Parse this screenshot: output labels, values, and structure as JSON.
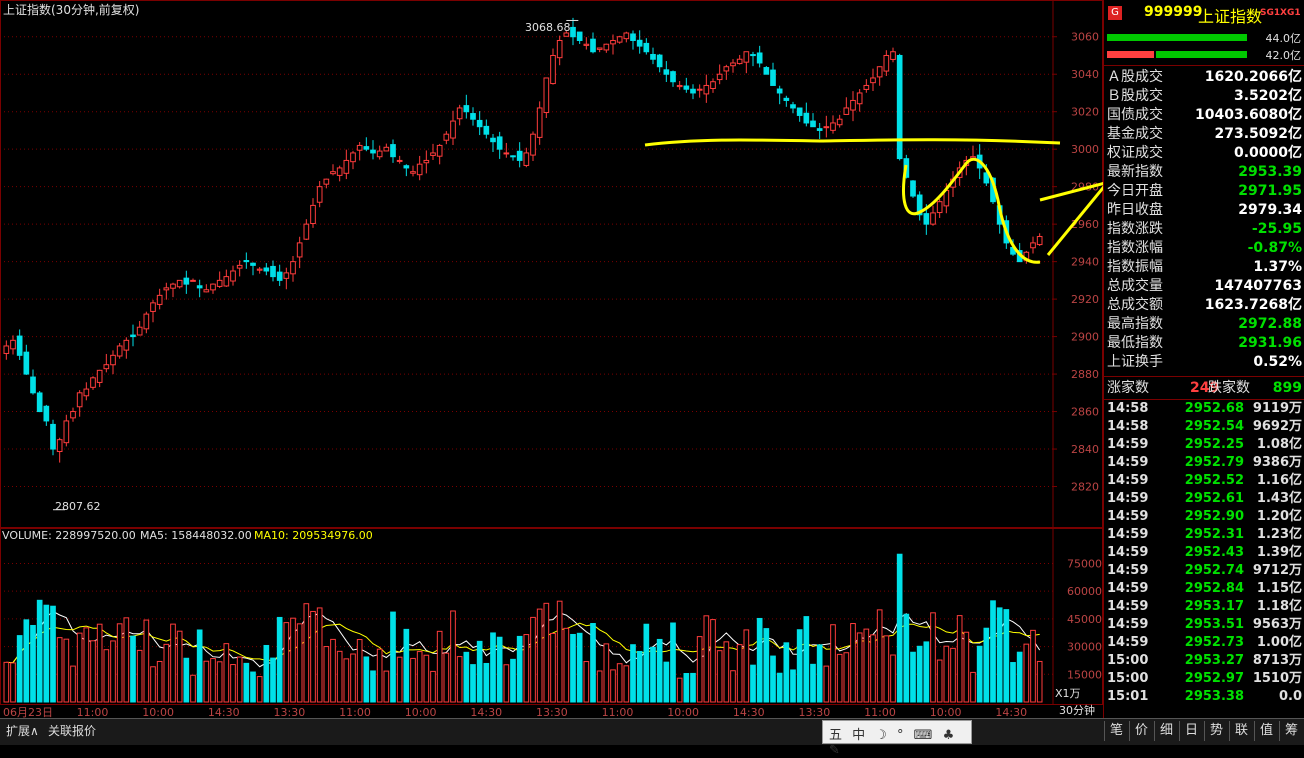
{
  "header": {
    "title": "上证指数(30分钟,前复权)"
  },
  "price_annotations": {
    "high": "3068.68",
    "low": "2807.62"
  },
  "volume_header": {
    "volume": "VOLUME: 228997520.00",
    "ma5": "MA5: 158448032.00",
    "ma10": "MA10: 209534976.00"
  },
  "volume_unit": "X1万",
  "colors": {
    "up": "#ff3c3c",
    "down": "#00e0e8",
    "ma5": "#ffffff",
    "ma10": "#ffff00",
    "annotation": "#ffff00",
    "grid": "#7a0000"
  },
  "panel": {
    "code": "999999",
    "name": "上证指数",
    "tags": [
      "SG1",
      "XG1"
    ],
    "bars": [
      {
        "label": "44.0亿",
        "green_pct": 100
      },
      {
        "label": "42.0亿",
        "green_pct": 45
      }
    ],
    "stats": [
      {
        "label": "Ａ股成交",
        "value": "1620.2066亿"
      },
      {
        "label": "Ｂ股成交",
        "value": "3.5202亿"
      },
      {
        "label": "国债成交",
        "value": "10403.6080亿"
      },
      {
        "label": "基金成交",
        "value": "273.5092亿"
      },
      {
        "label": "权证成交",
        "value": "0.0000亿"
      },
      {
        "label": "最新指数",
        "value": "2953.39"
      },
      {
        "label": "今日开盘",
        "value": "2971.95"
      },
      {
        "label": "昨日收盘",
        "value": "2979.34"
      },
      {
        "label": "指数涨跌",
        "value": "-25.95"
      },
      {
        "label": "指数涨幅",
        "value": "-0.87%"
      },
      {
        "label": "指数振幅",
        "value": "1.37%"
      },
      {
        "label": "总成交量",
        "value": "147407763"
      },
      {
        "label": "总成交额",
        "value": "1623.7268亿"
      },
      {
        "label": "最高指数",
        "value": "2972.88"
      },
      {
        "label": "最低指数",
        "value": "2931.96"
      },
      {
        "label": "上证换手",
        "value": "0.52%"
      }
    ],
    "advance": {
      "up_label": "涨家数",
      "up": "249",
      "down_label": "跌家数",
      "down": "899"
    },
    "ticks": [
      {
        "time": "14:58",
        "price": "2952.68",
        "vol": "9119万"
      },
      {
        "time": "14:58",
        "price": "2952.54",
        "vol": "9692万"
      },
      {
        "time": "14:59",
        "price": "2952.25",
        "vol": "1.08亿"
      },
      {
        "time": "14:59",
        "price": "2952.79",
        "vol": "9386万"
      },
      {
        "time": "14:59",
        "price": "2952.52",
        "vol": "1.16亿"
      },
      {
        "time": "14:59",
        "price": "2952.61",
        "vol": "1.43亿"
      },
      {
        "time": "14:59",
        "price": "2952.90",
        "vol": "1.20亿"
      },
      {
        "time": "14:59",
        "price": "2952.31",
        "vol": "1.23亿"
      },
      {
        "time": "14:59",
        "price": "2952.43",
        "vol": "1.39亿"
      },
      {
        "time": "14:59",
        "price": "2952.74",
        "vol": "9712万"
      },
      {
        "time": "14:59",
        "price": "2952.84",
        "vol": "1.15亿"
      },
      {
        "time": "14:59",
        "price": "2953.17",
        "vol": "1.18亿"
      },
      {
        "time": "14:59",
        "price": "2953.51",
        "vol": "9563万"
      },
      {
        "time": "14:59",
        "price": "2952.73",
        "vol": "1.00亿"
      },
      {
        "time": "15:00",
        "price": "2953.27",
        "vol": "8713万"
      },
      {
        "time": "15:00",
        "price": "2952.97",
        "vol": "1510万"
      },
      {
        "time": "15:01",
        "price": "2953.38",
        "vol": "0.0"
      }
    ]
  },
  "bottom": {
    "tabs": [
      "扩展∧",
      "关联报价"
    ],
    "period": "30分钟",
    "right_tabs": [
      "笔",
      "价",
      "细",
      "日",
      "势",
      "联",
      "值",
      "筹"
    ],
    "ime": "五 中 ☽ ° ⌨ ♣ ✎"
  },
  "chart_data": {
    "type": "candlestick",
    "title": "上证指数(30分钟,前复权)",
    "price_ylim": [
      2800,
      3070
    ],
    "price_ticks": [
      2820,
      2840,
      2860,
      2880,
      2900,
      2920,
      2940,
      2960,
      2980,
      3000,
      3020,
      3040,
      3060
    ],
    "volume_ylim": [
      0,
      85000
    ],
    "volume_ticks": [
      15000,
      30000,
      45000,
      60000,
      75000
    ],
    "x_ticks": [
      "06月23日",
      "11:00",
      "10:00",
      "14:30",
      "13:30",
      "11:00",
      "10:00",
      "14:30",
      "13:30",
      "11:00",
      "10:00",
      "14:30",
      "13:30",
      "11:00",
      "10:00",
      "14:30"
    ],
    "candles": [
      2895,
      2898,
      2890,
      2880,
      2870,
      2860,
      2855,
      2840,
      2845,
      2855,
      2860,
      2870,
      2872,
      2878,
      2882,
      2885,
      2890,
      2895,
      2898,
      2900,
      2905,
      2912,
      2918,
      2922,
      2926,
      2928,
      2930,
      2928,
      2930,
      2926,
      2925,
      2928,
      2930,
      2932,
      2935,
      2938,
      2940,
      2938,
      2936,
      2935,
      2932,
      2930,
      2934,
      2940,
      2950,
      2960,
      2970,
      2980,
      2984,
      2988,
      2990,
      2994,
      2998,
      3002,
      3000,
      2998,
      2999,
      3001,
      2996,
      2994,
      2990,
      2988,
      2992,
      2994,
      2998,
      3002,
      3008,
      3015,
      3022,
      3020,
      3016,
      3012,
      3008,
      3004,
      3000,
      2998,
      2996,
      2994,
      2998,
      3008,
      3022,
      3038,
      3050,
      3058,
      3062,
      3060,
      3058,
      3056,
      3052,
      3054,
      3056,
      3058,
      3060,
      3062,
      3058,
      3055,
      3052,
      3048,
      3044,
      3040,
      3036,
      3034,
      3032,
      3030,
      3032,
      3034,
      3036,
      3040,
      3044,
      3046,
      3048,
      3052,
      3050,
      3046,
      3040,
      3034,
      3030,
      3026,
      3022,
      3018,
      3014,
      3012,
      3010,
      3012,
      3014,
      3016,
      3022,
      3026,
      3030,
      3034,
      3038,
      3044,
      3050,
      3052,
      2995,
      2985,
      2975,
      2965,
      2960,
      2966,
      2972,
      2978,
      2984,
      2990,
      2994,
      2996,
      2990,
      2982,
      2972,
      2960,
      2950,
      2944,
      2940,
      2945,
      2950,
      2953.39
    ],
    "markers": [
      {
        "label": "3068.68",
        "value": 3068.68,
        "type": "high"
      },
      {
        "label": "2807.62",
        "value": 2807.62,
        "type": "low"
      }
    ],
    "series": [
      {
        "name": "VOLUME",
        "value": 228997520.0
      },
      {
        "name": "MA5",
        "value": 158448032.0
      },
      {
        "name": "MA10",
        "value": 209534976.0
      }
    ],
    "grid": true,
    "legend": "top-left"
  }
}
